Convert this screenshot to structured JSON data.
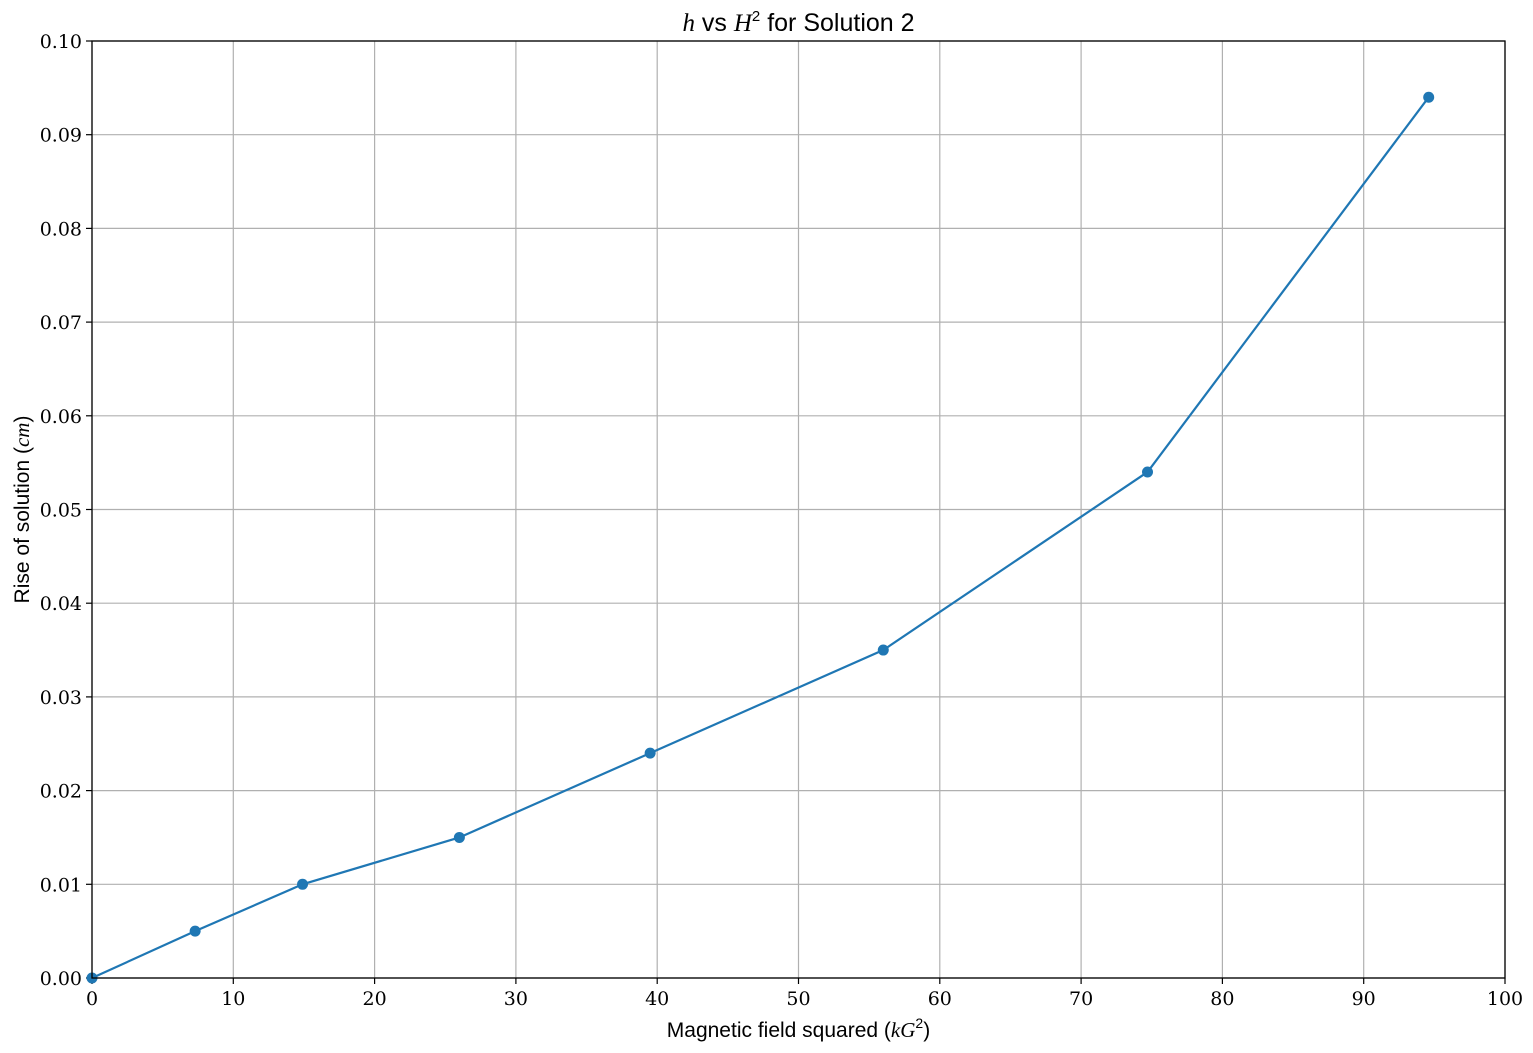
{
  "chart_data": {
    "type": "line",
    "title": {
      "var1": "h",
      "middle": " vs ",
      "var2": "H",
      "var2_sup": "2",
      "rest": " for Solution 2"
    },
    "xlabel": {
      "text": "Magnetic field squared (",
      "unit": "kG",
      "unit_sup": "2",
      "close": ")"
    },
    "ylabel": {
      "text": "Rise of solution (",
      "unit": "cm",
      "close": ")"
    },
    "xlim": [
      0,
      100
    ],
    "ylim": [
      0,
      0.1
    ],
    "xticks": [
      "0",
      "10",
      "20",
      "30",
      "40",
      "50",
      "60",
      "70",
      "80",
      "90",
      "100"
    ],
    "yticks": [
      "0.00",
      "0.01",
      "0.02",
      "0.03",
      "0.04",
      "0.05",
      "0.06",
      "0.07",
      "0.08",
      "0.09",
      "0.10"
    ],
    "grid": true,
    "color": "#1f77b4",
    "marker": "circle",
    "series": [
      {
        "x": [
          0,
          7.3,
          14.9,
          26.0,
          39.5,
          56.0,
          74.7,
          94.6
        ],
        "y": [
          0.0,
          0.005,
          0.01,
          0.015,
          0.024,
          0.035,
          0.054,
          0.094
        ]
      }
    ]
  }
}
